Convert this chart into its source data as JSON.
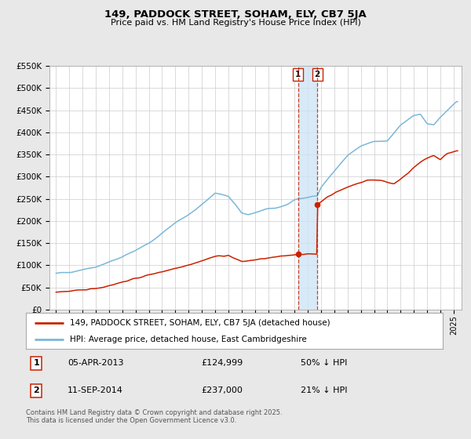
{
  "title": "149, PADDOCK STREET, SOHAM, ELY, CB7 5JA",
  "subtitle": "Price paid vs. HM Land Registry's House Price Index (HPI)",
  "ylim": [
    0,
    550000
  ],
  "yticks": [
    0,
    50000,
    100000,
    150000,
    200000,
    250000,
    300000,
    350000,
    400000,
    450000,
    500000,
    550000
  ],
  "ytick_labels": [
    "£0",
    "£50K",
    "£100K",
    "£150K",
    "£200K",
    "£250K",
    "£300K",
    "£350K",
    "£400K",
    "£450K",
    "£500K",
    "£550K"
  ],
  "hpi_color": "#7ab8d9",
  "price_color": "#cc2200",
  "background_color": "#e8e8e8",
  "plot_bg_color": "#ffffff",
  "grid_color": "#cccccc",
  "marker1_date": 2013.27,
  "marker2_date": 2014.71,
  "marker1_price_value": 124999,
  "marker2_price_value": 237000,
  "shade_start": 2013.27,
  "shade_end": 2014.71,
  "legend_text_red": "149, PADDOCK STREET, SOHAM, ELY, CB7 5JA (detached house)",
  "legend_text_blue": "HPI: Average price, detached house, East Cambridgeshire",
  "annotation1_date": "05-APR-2013",
  "annotation1_price": "£124,999",
  "annotation1_hpi": "50% ↓ HPI",
  "annotation2_date": "11-SEP-2014",
  "annotation2_price": "£237,000",
  "annotation2_hpi": "21% ↓ HPI",
  "footer": "Contains HM Land Registry data © Crown copyright and database right 2025.\nThis data is licensed under the Open Government Licence v3.0.",
  "xlim_left": 1994.5,
  "xlim_right": 2025.6
}
